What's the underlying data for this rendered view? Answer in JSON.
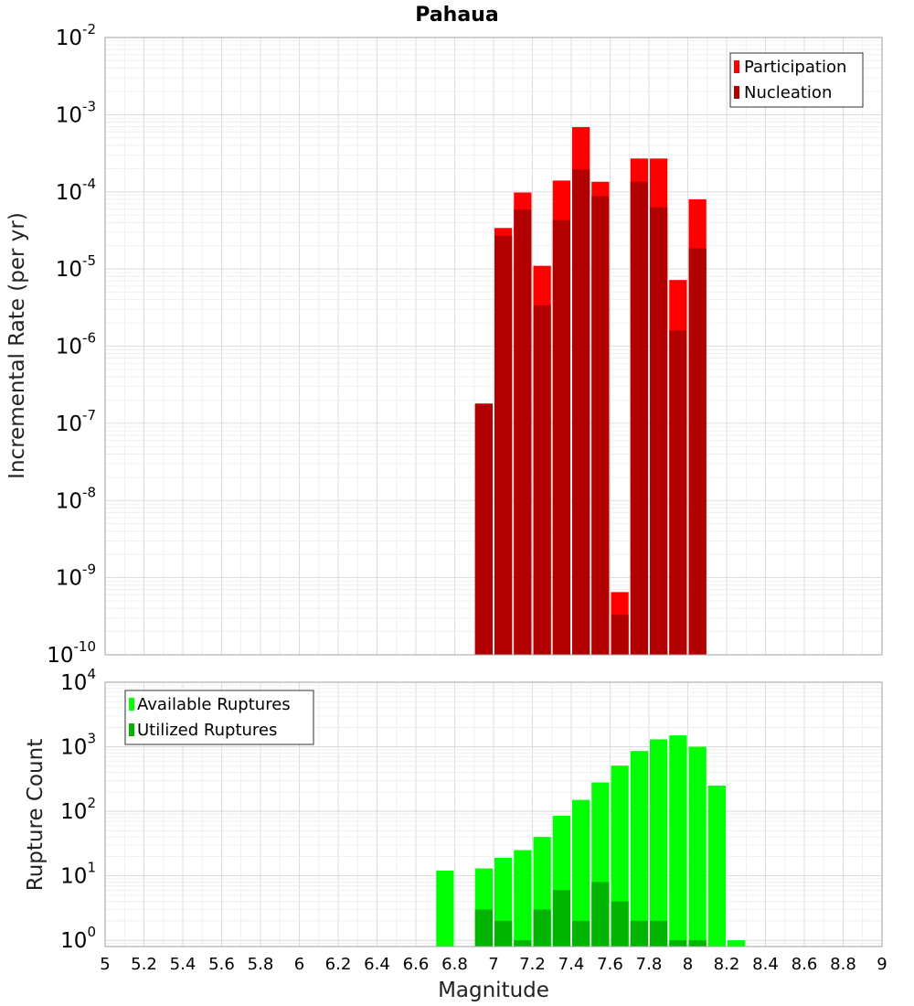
{
  "chart_data": [
    {
      "type": "bar",
      "title": "Pahaua",
      "xlabel": "",
      "ylabel": "Incremental Rate (per yr)",
      "yscale": "log",
      "ylim": [
        1e-10,
        0.01
      ],
      "xlim": [
        5,
        9
      ],
      "grid": true,
      "legend_position": "top-right",
      "bar_width": 0.1,
      "series": [
        {
          "name": "Participation",
          "color": "#ff0000",
          "x": [
            6.95,
            7.05,
            7.15,
            7.25,
            7.35,
            7.45,
            7.55,
            7.65,
            7.75,
            7.85,
            7.95,
            8.05
          ],
          "values": [
            1.8e-07,
            3.4e-05,
            9.8e-05,
            1.1e-05,
            0.00014,
            0.00069,
            0.000135,
            6.5e-10,
            0.00027,
            0.00027,
            7.2e-06,
            8e-05
          ]
        },
        {
          "name": "Nucleation",
          "color": "#b20000",
          "x": [
            6.95,
            7.05,
            7.15,
            7.25,
            7.35,
            7.45,
            7.55,
            7.65,
            7.75,
            7.85,
            7.95,
            8.05
          ],
          "values": [
            1.8e-07,
            2.7e-05,
            5.9e-05,
            3.4e-06,
            4.3e-05,
            0.000195,
            8.8e-05,
            3.3e-10,
            0.000135,
            6.3e-05,
            1.6e-06,
            1.85e-05
          ]
        }
      ]
    },
    {
      "type": "bar",
      "title": "",
      "xlabel": "Magnitude",
      "ylabel": "Rupture Count",
      "yscale": "log",
      "ylim": [
        0.8,
        10000
      ],
      "xlim": [
        5,
        9
      ],
      "grid": true,
      "legend_position": "top-left",
      "bar_width": 0.1,
      "series": [
        {
          "name": "Available Ruptures",
          "color": "#00ff00",
          "x": [
            6.75,
            6.95,
            7.05,
            7.15,
            7.25,
            7.35,
            7.45,
            7.55,
            7.65,
            7.75,
            7.85,
            7.95,
            8.05,
            8.15,
            8.25
          ],
          "values": [
            12,
            13,
            19,
            25,
            40,
            85,
            150,
            280,
            510,
            860,
            1300,
            1500,
            1000,
            250,
            1
          ]
        },
        {
          "name": "Utilized Ruptures",
          "color": "#00b400",
          "x": [
            6.95,
            7.05,
            7.15,
            7.25,
            7.35,
            7.45,
            7.55,
            7.65,
            7.75,
            7.85,
            7.95,
            8.05
          ],
          "values": [
            3,
            2,
            1,
            3,
            6,
            2,
            8,
            4,
            2,
            2,
            1,
            1
          ]
        }
      ]
    }
  ],
  "ticks": {
    "x": [
      "5",
      "5.2",
      "5.4",
      "5.6",
      "5.8",
      "6",
      "6.2",
      "6.4",
      "6.6",
      "6.8",
      "7",
      "7.2",
      "7.4",
      "7.6",
      "7.8",
      "8",
      "8.2",
      "8.4",
      "8.6",
      "8.8",
      "9"
    ],
    "top_y_exponents": [
      "-10",
      "-9",
      "-8",
      "-7",
      "-6",
      "-5",
      "-4",
      "-3",
      "-2"
    ],
    "bottom_y_exponents": [
      "0",
      "1",
      "2",
      "3",
      "4"
    ],
    "y_base": "10"
  }
}
